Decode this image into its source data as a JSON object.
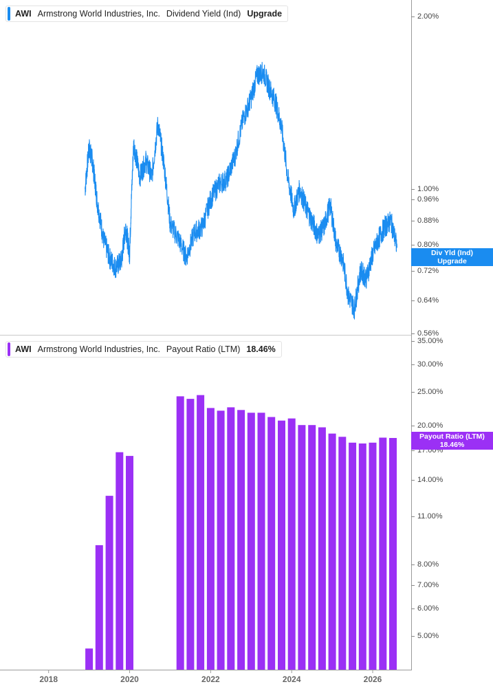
{
  "panels": {
    "top": {
      "ticker": "AWI",
      "company": "Armstrong World Industries, Inc.",
      "metric": "Dividend Yield (Ind)",
      "value": "Upgrade",
      "color": "#1a8cf0",
      "flag_line1": "Div Yld (Ind)",
      "flag_line2": "Upgrade"
    },
    "bottom": {
      "ticker": "AWI",
      "company": "Armstrong World Industries, Inc.",
      "metric": "Payout Ratio (LTM)",
      "value": "18.46%",
      "color": "#9b30f5",
      "flag_line1": "Payout Ratio (LTM)",
      "flag_line2": "18.46%"
    }
  },
  "chart_data": [
    {
      "type": "line",
      "title": "AWI Armstrong World Industries, Inc. Dividend Yield (Ind)",
      "yscale": "log",
      "ylim": [
        0.56,
        2.1
      ],
      "yticks": [
        "2.00%",
        "1.00%",
        "0.96%",
        "0.88%",
        "0.80%",
        "0.72%",
        "0.64%",
        "0.56%"
      ],
      "ytick_values": [
        2.0,
        1.0,
        0.96,
        0.88,
        0.8,
        0.72,
        0.64,
        0.56
      ],
      "series": [
        {
          "x": [
            2018.9,
            2019.0,
            2019.08,
            2019.2,
            2019.35,
            2019.5,
            2019.65,
            2019.8,
            2019.9,
            2020.0,
            2020.1,
            2020.25,
            2020.4,
            2020.55,
            2020.7,
            2020.85,
            2021.0,
            2021.2,
            2021.4,
            2021.6,
            2021.8,
            2022.0,
            2022.2,
            2022.4,
            2022.6,
            2022.8,
            2023.0,
            2023.15,
            2023.3,
            2023.45,
            2023.6,
            2023.75,
            2023.9,
            2024.05,
            2024.2,
            2024.35,
            2024.5,
            2024.65,
            2024.8,
            2024.95,
            2025.1,
            2025.25,
            2025.4,
            2025.55,
            2025.7,
            2025.85,
            2026.0,
            2026.15,
            2026.3,
            2026.45,
            2026.6
          ],
          "y": [
            1.0,
            1.18,
            1.12,
            0.95,
            0.82,
            0.76,
            0.73,
            0.75,
            0.86,
            0.77,
            1.2,
            1.05,
            1.12,
            1.05,
            1.3,
            1.1,
            0.87,
            0.82,
            0.76,
            0.84,
            0.86,
            0.96,
            1.02,
            1.04,
            1.14,
            1.32,
            1.44,
            1.58,
            1.6,
            1.5,
            1.42,
            1.28,
            1.05,
            0.92,
            1.0,
            0.93,
            0.88,
            0.83,
            0.86,
            0.94,
            0.8,
            0.76,
            0.65,
            0.62,
            0.72,
            0.7,
            0.77,
            0.82,
            0.86,
            0.88,
            0.79
          ]
        }
      ]
    },
    {
      "type": "bar",
      "title": "AWI Armstrong World Industries, Inc. Payout Ratio (LTM)",
      "yscale": "log",
      "ylim": [
        4.0,
        35.0
      ],
      "yticks": [
        "35.00%",
        "30.00%",
        "25.00%",
        "20.00%",
        "17.00%",
        "14.00%",
        "11.00%",
        "8.00%",
        "7.00%",
        "6.00%",
        "5.00%"
      ],
      "ytick_values": [
        35,
        30,
        25,
        20,
        17,
        14,
        11,
        8,
        7,
        6,
        5
      ],
      "xlim": [
        2016.8,
        2026.95
      ],
      "xticks": [
        "2018",
        "2020",
        "2022",
        "2024",
        "2026"
      ],
      "xtick_values": [
        2018,
        2020,
        2022,
        2024,
        2026
      ],
      "categories": [
        2019.0,
        2019.25,
        2019.5,
        2019.75,
        2020.0,
        2021.25,
        2021.5,
        2021.75,
        2022.0,
        2022.25,
        2022.5,
        2022.75,
        2023.0,
        2023.25,
        2023.5,
        2023.75,
        2024.0,
        2024.25,
        2024.5,
        2024.75,
        2025.0,
        2025.25,
        2025.5,
        2025.75,
        2026.0,
        2026.25,
        2026.5
      ],
      "values": [
        4.6,
        9.1,
        12.6,
        16.8,
        16.4,
        24.3,
        23.9,
        24.5,
        22.5,
        22.1,
        22.6,
        22.2,
        21.8,
        21.8,
        21.2,
        20.7,
        21.0,
        20.1,
        20.1,
        19.8,
        19.0,
        18.6,
        17.9,
        17.8,
        17.9,
        18.5,
        18.46
      ]
    }
  ]
}
